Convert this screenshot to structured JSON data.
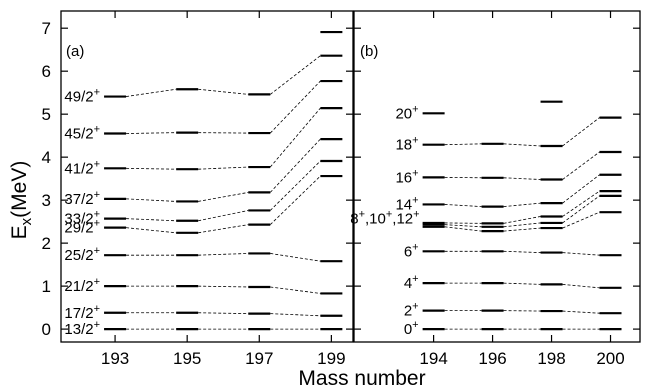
{
  "chart_data": {
    "type": "line",
    "xlabel": "Mass number",
    "ylabel": "E",
    "ylabel_sub": "x",
    "ylabel_unit": "(MeV)",
    "ylim": [
      -0.3,
      7.4
    ],
    "yticks": [
      0,
      1,
      2,
      3,
      4,
      5,
      6,
      7
    ],
    "grid": false,
    "panels": [
      {
        "label": "(a)",
        "xlim": [
          191.5,
          199.6
        ],
        "xticks": [
          193,
          195,
          197,
          199
        ],
        "levels": [
          {
            "label": "13/2+",
            "text": "13/2",
            "sup": "+",
            "x": [
              193,
              195,
              197,
              199
            ],
            "y": [
              0,
              0,
              0,
              0
            ]
          },
          {
            "label": "17/2+",
            "text": "17/2",
            "sup": "+",
            "x": [
              193,
              195,
              197,
              199
            ],
            "y": [
              0.38,
              0.38,
              0.36,
              0.31
            ]
          },
          {
            "label": "21/2+",
            "text": "21/2",
            "sup": "+",
            "x": [
              193,
              195,
              197,
              199
            ],
            "y": [
              1.0,
              1.0,
              0.98,
              0.83
            ]
          },
          {
            "label": "25/2+",
            "text": "25/2",
            "sup": "+",
            "x": [
              193,
              195,
              197,
              199
            ],
            "y": [
              1.72,
              1.72,
              1.76,
              1.58
            ]
          },
          {
            "label": "29/2+",
            "text": "29/2",
            "sup": "+",
            "x": [
              193,
              195,
              197,
              199
            ],
            "y": [
              2.36,
              2.24,
              2.43,
              3.56
            ]
          },
          {
            "label": "33/2+",
            "text": "33/2",
            "sup": "+",
            "x": [
              193,
              195,
              197,
              199
            ],
            "y": [
              2.57,
              2.52,
              2.76,
              3.91
            ]
          },
          {
            "label": "37/2+",
            "text": "37/2",
            "sup": "+",
            "x": [
              193,
              195,
              197,
              199
            ],
            "y": [
              3.03,
              2.97,
              3.18,
              4.42
            ]
          },
          {
            "label": "41/2+",
            "text": "41/2",
            "sup": "+",
            "x": [
              193,
              195,
              197,
              199
            ],
            "y": [
              3.74,
              3.72,
              3.77,
              5.14
            ]
          },
          {
            "label": "45/2+",
            "text": "45/2",
            "sup": "+",
            "x": [
              193,
              195,
              197,
              199
            ],
            "y": [
              4.55,
              4.57,
              4.56,
              5.77
            ]
          },
          {
            "label": "49/2+",
            "text": "49/2",
            "sup": "+",
            "x": [
              193,
              195,
              197,
              199
            ],
            "y": [
              5.41,
              5.58,
              5.46,
              6.36
            ]
          }
        ],
        "extra_levels": [
          {
            "x": 199,
            "y": 6.91
          }
        ]
      },
      {
        "label": "(b)",
        "xlim": [
          191.3,
          201.0
        ],
        "xticks": [
          194,
          196,
          198,
          200
        ],
        "levels": [
          {
            "label": "0+",
            "text": "0",
            "sup": "+",
            "x": [
              194,
              196,
              198,
              200
            ],
            "y": [
              0,
              0,
              0,
              0
            ]
          },
          {
            "label": "2+",
            "text": "2",
            "sup": "+",
            "x": [
              194,
              196,
              198,
              200
            ],
            "y": [
              0.43,
              0.43,
              0.42,
              0.37
            ]
          },
          {
            "label": "4+",
            "text": "4",
            "sup": "+",
            "x": [
              194,
              196,
              198,
              200
            ],
            "y": [
              1.07,
              1.07,
              1.04,
              0.96
            ]
          },
          {
            "label": "6+",
            "text": "6",
            "sup": "+",
            "x": [
              194,
              196,
              198,
              200
            ],
            "y": [
              1.81,
              1.81,
              1.78,
              1.72
            ]
          },
          {
            "label": "8+",
            "text": "",
            "sup": "",
            "x": [
              194,
              196,
              198,
              200
            ],
            "y": [
              2.38,
              2.28,
              2.35,
              2.72
            ]
          },
          {
            "label": "10+",
            "text": "",
            "sup": "",
            "x": [
              194,
              196,
              198,
              200
            ],
            "y": [
              2.43,
              2.38,
              2.47,
              3.1
            ]
          },
          {
            "label": "12+",
            "text": "",
            "sup": "",
            "x": [
              194,
              196,
              198,
              200
            ],
            "y": [
              2.47,
              2.46,
              2.62,
              3.21
            ]
          },
          {
            "label": "14+",
            "text": "14",
            "sup": "+",
            "x": [
              194,
              196,
              198,
              200
            ],
            "y": [
              2.9,
              2.85,
              2.93,
              3.59
            ]
          },
          {
            "label": "16+",
            "text": "16",
            "sup": "+",
            "x": [
              194,
              196,
              198,
              200
            ],
            "y": [
              3.53,
              3.52,
              3.48,
              4.12
            ]
          },
          {
            "label": "18+",
            "text": "18",
            "sup": "+",
            "x": [
              194,
              196,
              198,
              200
            ],
            "y": [
              4.29,
              4.31,
              4.26,
              4.92
            ]
          }
        ],
        "group_label": {
          "text": "8",
          "parts": [
            [
              "8",
              "+"
            ],
            [
              "10",
              "+"
            ],
            [
              "12",
              "+"
            ]
          ]
        },
        "group_y": 2.43,
        "extra_levels": [
          {
            "x": 194,
            "y": 5.02
          },
          {
            "x": 198,
            "y": 5.29
          }
        ],
        "extra_labels": [
          {
            "text": "20",
            "sup": "+",
            "y": 5.02
          }
        ]
      }
    ]
  }
}
